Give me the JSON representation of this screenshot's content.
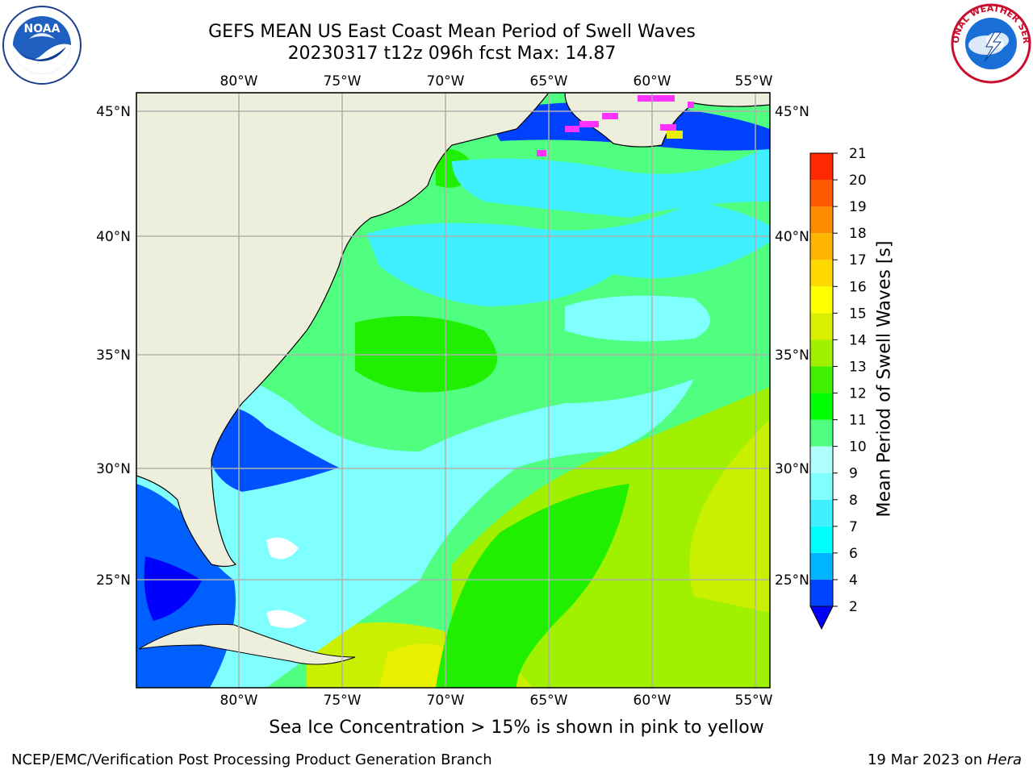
{
  "title": {
    "line1": "GEFS MEAN US East Coast Mean Period of Swell Waves",
    "line2": "20230317 t12z 096h fcst   Max: 14.87"
  },
  "map": {
    "longitude_labels": [
      "80°W",
      "75°W",
      "70°W",
      "65°W",
      "60°W",
      "55°W"
    ],
    "latitude_labels": [
      "45°N",
      "40°N",
      "35°N",
      "30°N",
      "25°N"
    ],
    "extent": {
      "lon_min": -85,
      "lon_max": -54.5,
      "lat_min": 20.5,
      "lat_max": 45.8
    }
  },
  "colorbar": {
    "title": "Mean Period of Swell Waves [s]",
    "ticks": [
      "2",
      "4",
      "6",
      "7",
      "8",
      "9",
      "10",
      "11",
      "12",
      "13",
      "14",
      "15",
      "16",
      "17",
      "18",
      "19",
      "20",
      "21"
    ],
    "colors": [
      "#0044ff",
      "#00b4ff",
      "#00ffff",
      "#40f0ff",
      "#80ffff",
      "#b0ffff",
      "#50ff80",
      "#00ff00",
      "#40f000",
      "#a0f000",
      "#d8f000",
      "#ffff00",
      "#ffd800",
      "#ffb400",
      "#ff8c00",
      "#ff5a00",
      "#ff2800",
      "#ff0000"
    ],
    "extend_color": "#0000ff"
  },
  "colors": {
    "land": "#eeeedd",
    "sea_ice_pink": "#ff33ff",
    "grid": "#b0b0b0"
  },
  "logos": {
    "noaa": "NOAA",
    "nws": "NATIONAL WEATHER SERVICE"
  },
  "sea_ice_note": "Sea Ice Concentration > 15% is shown in pink to yellow",
  "footer": {
    "left": "NCEP/EMC/Verification Post Processing Product Generation Branch",
    "right_date": "19 Mar 2023 on ",
    "right_system": "Hera"
  }
}
